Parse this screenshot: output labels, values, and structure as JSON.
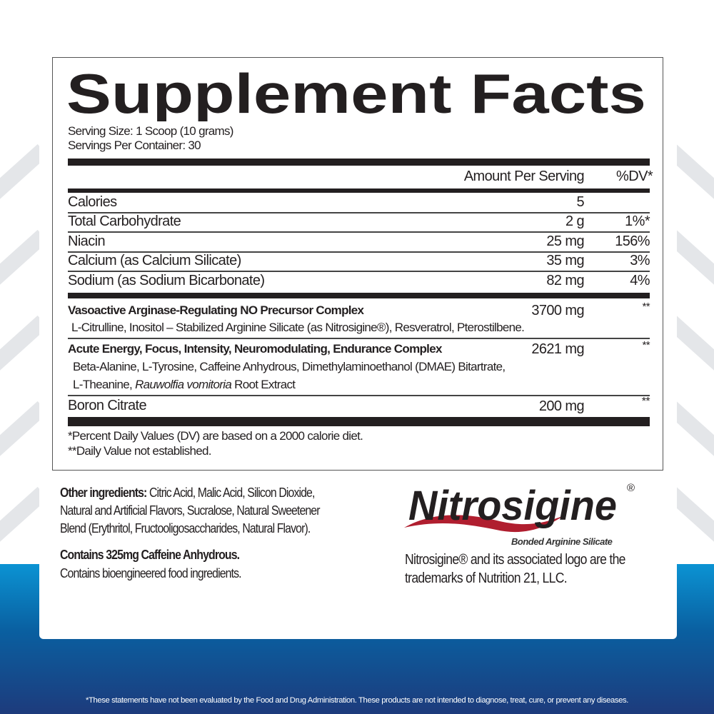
{
  "title": "Supplement Facts",
  "serving_size": "Serving Size: 1 Scoop (10 grams)",
  "servings_per_container": "Servings Per Container: 30",
  "header": {
    "amount": "Amount Per Serving",
    "dv": "%DV*"
  },
  "rows": [
    {
      "name": "Calories",
      "amount": "5",
      "dv": ""
    },
    {
      "name": "Total Carbohydrate",
      "amount": "2 g",
      "dv": "1%*"
    },
    {
      "name": "Niacin",
      "amount": "25 mg",
      "dv": "156%"
    },
    {
      "name": "Calcium (as Calcium Silicate)",
      "amount": "35 mg",
      "dv": "3%"
    },
    {
      "name": "Sodium (as Sodium Bicarbonate)",
      "amount": "82 mg",
      "dv": "4%"
    }
  ],
  "blends": [
    {
      "name": "Vasoactive Arginase-Regulating NO Precursor Complex",
      "amount": "3700 mg",
      "dv": "**",
      "ingredients": [
        "L-Citrulline, Inositol – Stabilized Arginine Silicate (as Nitrosigine®), Resveratrol, Pterostilbene."
      ]
    },
    {
      "name": "Acute Energy, Focus, Intensity, Neuromodulating, Endurance Complex",
      "amount": "2621 mg",
      "dv": "**",
      "ingredients": [
        "Beta-Alanine, L-Tyrosine, Caffeine Anhydrous, Dimethylaminoethanol (DMAE) Bitartrate,",
        "L-Theanine, ",
        "Rauwolfia vomitoria",
        " Root Extract"
      ]
    }
  ],
  "boron": {
    "name": "Boron Citrate",
    "amount": "200 mg",
    "dv": "**"
  },
  "footnotes": [
    "*Percent Daily Values (DV) are based on a 2000 calorie diet.",
    "**Daily Value not established."
  ],
  "other": {
    "label": "Other ingredients:",
    "lines": [
      " Citric Acid, Malic Acid, Silicon Dioxide,",
      "Natural and Artificial Flavors, Sucralose, Natural Sweetener",
      "Blend (Erythritol, Fructooligosaccharides, Natural Flavor)."
    ],
    "caffeine": "Contains 325mg Caffeine Anhydrous.",
    "bioengineered": "Contains bioengineered food ingredients."
  },
  "logo": {
    "text": "Nitrosigine",
    "reg": "®",
    "tagline": "Bonded Arginine Silicate",
    "colors": {
      "text": "#231f20",
      "swoosh": "#b01e2f"
    }
  },
  "trademark": [
    "Nitrosigine® and its associated logo are the",
    "trademarks of Nutrition 21, LLC."
  ],
  "disclaimer": "*These statements have not been evaluated by the Food and Drug Administration. These products are not intended to diagnose, treat, cure, or prevent any diseases.",
  "colors": {
    "blue_top": "#0b93d3",
    "blue_bottom": "#1d3b7c"
  }
}
